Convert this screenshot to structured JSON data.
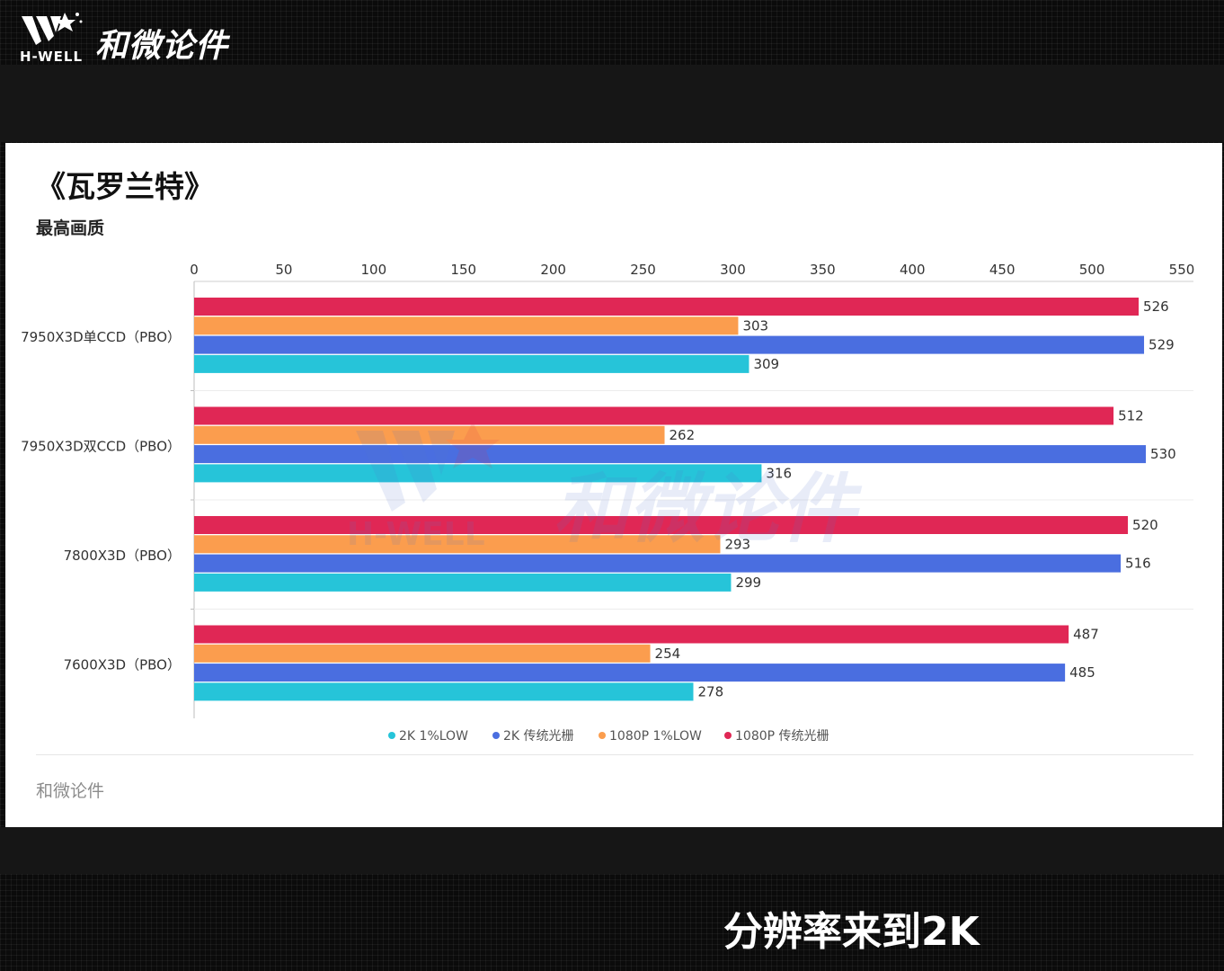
{
  "brand": {
    "name": "和微论件",
    "sub": "H-WELL"
  },
  "card": {
    "title": "《瓦罗兰特》",
    "subtitle": "最高画质",
    "footer": "和微论件"
  },
  "caption": "分辨率来到2K",
  "colors": {
    "2k_low": "#26c4d9",
    "2k_raster": "#4a6ee0",
    "1080p_low": "#fb9d4e",
    "1080p_raster": "#e02755"
  },
  "chart_data": {
    "type": "bar",
    "orientation": "horizontal",
    "title": "《瓦罗兰特》",
    "subtitle": "最高画质",
    "categories": [
      "7950X3D单CCD（PBO）",
      "7950X3D双CCD（PBO）",
      "7800X3D（PBO）",
      "7600X3D（PBO）"
    ],
    "series": [
      {
        "name": "1080P 传统光栅",
        "color": "#e02755",
        "values": [
          526,
          512,
          520,
          487
        ]
      },
      {
        "name": "1080P 1%LOW",
        "color": "#fb9d4e",
        "values": [
          303,
          262,
          293,
          254
        ]
      },
      {
        "name": "2K 传统光栅",
        "color": "#4a6ee0",
        "values": [
          529,
          530,
          516,
          485
        ]
      },
      {
        "name": "2K 1%LOW",
        "color": "#26c4d9",
        "values": [
          309,
          316,
          299,
          278
        ]
      }
    ],
    "legend_order": [
      "2K 1%LOW",
      "2K 传统光栅",
      "1080P 1%LOW",
      "1080P 传统光栅"
    ],
    "xlim": [
      0,
      550
    ],
    "xticks": [
      0,
      50,
      100,
      150,
      200,
      250,
      300,
      350,
      400,
      450,
      500,
      550
    ],
    "x_axis_position": "top",
    "legend_position": "bottom-center",
    "grid": false
  }
}
